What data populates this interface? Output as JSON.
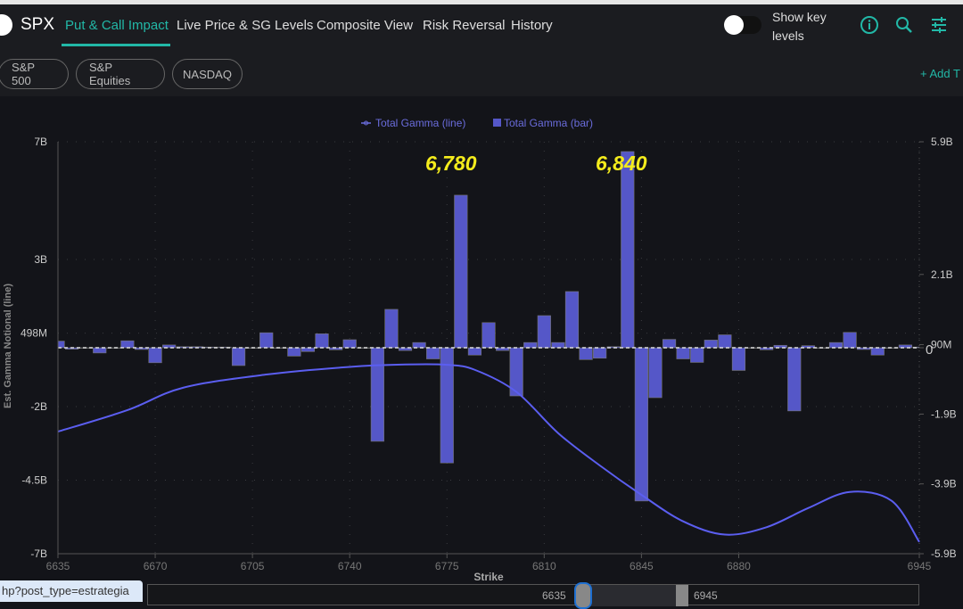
{
  "header": {
    "ticker": "SPX",
    "tabs": [
      "Put & Call Impact",
      "Live Price & SG Levels",
      "Composite View",
      "Risk Reversal",
      "History"
    ],
    "active_tab": 0,
    "pills": [
      "S&P 500",
      "S&P Equities",
      "NASDAQ"
    ],
    "toggle_label": "Show key levels",
    "toggle_on": false,
    "add_tab": "+ Add T",
    "accent": "#22b8a7"
  },
  "chart_data": {
    "type": "bar+line",
    "legend": [
      "Total Gamma (line)",
      "Total Gamma (bar)"
    ],
    "legend_position": "top",
    "xlabel": "Strike",
    "ylabel": "Est. Gamma Notional (line)",
    "x_ticks": [
      "6635",
      "6670",
      "6705",
      "6740",
      "6775",
      "6810",
      "6845",
      "6880",
      "6945"
    ],
    "xlim": [
      6635,
      6945
    ],
    "y_left_ticks": [
      "7B",
      "3B",
      "498M",
      "-2B",
      "-4.5B",
      "-7B"
    ],
    "y_left_lim_billions": [
      -7,
      7
    ],
    "y_right_ticks": [
      "5.9B",
      "2.1B",
      "90M",
      "0",
      "-1.9B",
      "-3.9B",
      "-5.9B"
    ],
    "y_right_lim_billions": [
      -5.9,
      5.9
    ],
    "grid": true,
    "color": "#5557c8",
    "annotations": [
      {
        "text": "6,780",
        "strike": 6780
      },
      {
        "text": "6,840",
        "strike": 6840
      }
    ],
    "bar_series": {
      "name": "Total Gamma (bar)",
      "strike_start": 6635,
      "strike_step": 5,
      "values_billions": [
        0.19,
        -0.04,
        0,
        -0.15,
        0,
        0.2,
        -0.05,
        -0.43,
        0.08,
        0.03,
        0.03,
        0.02,
        0.02,
        -0.51,
        0,
        0.43,
        0,
        -0.24,
        -0.11,
        0.4,
        -0.06,
        0.23,
        0,
        -2.68,
        1.1,
        -0.08,
        0.15,
        -0.32,
        -3.3,
        4.37,
        -0.21,
        0.72,
        -0.08,
        -1.38,
        0.15,
        0.92,
        0.15,
        1.61,
        -0.34,
        -0.3,
        0.03,
        5.62,
        -4.39,
        -1.43,
        0.24,
        -0.32,
        -0.42,
        0.22,
        0.37,
        -0.65,
        0,
        -0.06,
        0.07,
        -1.81,
        0.06,
        0,
        0.15,
        0.44,
        -0.05,
        -0.21,
        0,
        0.08,
        0.02
      ]
    },
    "line_series": {
      "name": "Total Gamma (line)",
      "x": [
        6635,
        6660,
        6680,
        6710,
        6740,
        6760,
        6775,
        6785,
        6800,
        6815,
        6830,
        6845,
        6860,
        6875,
        6890,
        6905,
        6920,
        6935,
        6945
      ],
      "y_billions": [
        -2.85,
        -2.12,
        -1.36,
        -0.91,
        -0.65,
        -0.57,
        -0.58,
        -0.75,
        -1.5,
        -2.9,
        -4.0,
        -5.0,
        -5.9,
        -6.35,
        -6.1,
        -5.45,
        -4.9,
        -5.2,
        -6.6
      ]
    }
  },
  "range_slider": {
    "min_label": "6635",
    "max_label": "6945"
  },
  "tooltip": "hp?post_type=estrategia"
}
